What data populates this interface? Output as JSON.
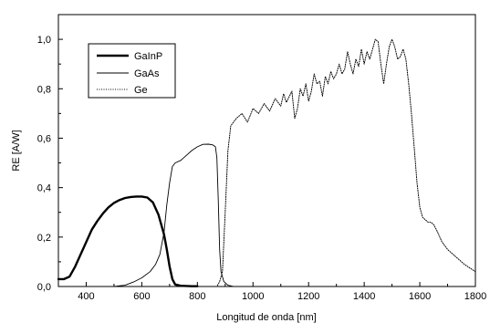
{
  "chart_data": {
    "type": "line",
    "title": "",
    "xlabel": "Longitud de onda [nm]",
    "ylabel": "RE [A/W]",
    "xlim": [
      300,
      1800
    ],
    "ylim": [
      0,
      1.1
    ],
    "x_ticks": [
      400,
      600,
      800,
      1000,
      1200,
      1400,
      1600,
      1800
    ],
    "y_ticks": [
      0.0,
      0.2,
      0.4,
      0.6,
      0.8,
      1.0
    ],
    "x_tick_labels": [
      "400",
      "600",
      "800",
      "1000",
      "1200",
      "1400",
      "1600",
      "1800"
    ],
    "y_tick_labels": [
      "0,0",
      "0,2",
      "0,4",
      "0,6",
      "0,8",
      "1,0"
    ],
    "grid": false,
    "legend_position": "top-left",
    "series": [
      {
        "name": "GaInP",
        "line_style": "solid-thick",
        "color": "#000000",
        "points": [
          [
            300,
            0.03
          ],
          [
            320,
            0.03
          ],
          [
            340,
            0.04
          ],
          [
            360,
            0.08
          ],
          [
            380,
            0.13
          ],
          [
            400,
            0.18
          ],
          [
            420,
            0.23
          ],
          [
            440,
            0.265
          ],
          [
            460,
            0.295
          ],
          [
            480,
            0.32
          ],
          [
            500,
            0.338
          ],
          [
            520,
            0.35
          ],
          [
            540,
            0.358
          ],
          [
            560,
            0.362
          ],
          [
            580,
            0.364
          ],
          [
            600,
            0.364
          ],
          [
            620,
            0.36
          ],
          [
            640,
            0.34
          ],
          [
            660,
            0.29
          ],
          [
            680,
            0.21
          ],
          [
            690,
            0.15
          ],
          [
            700,
            0.08
          ],
          [
            710,
            0.03
          ],
          [
            720,
            0.008
          ],
          [
            740,
            0.003
          ],
          [
            780,
            0.001
          ],
          [
            800,
            0.001
          ]
        ]
      },
      {
        "name": "GaAs",
        "line_style": "solid-thin",
        "color": "#000000",
        "points": [
          [
            500,
            0.0
          ],
          [
            540,
            0.005
          ],
          [
            570,
            0.018
          ],
          [
            600,
            0.035
          ],
          [
            630,
            0.06
          ],
          [
            650,
            0.09
          ],
          [
            665,
            0.13
          ],
          [
            680,
            0.22
          ],
          [
            690,
            0.33
          ],
          [
            700,
            0.42
          ],
          [
            710,
            0.485
          ],
          [
            720,
            0.5
          ],
          [
            740,
            0.51
          ],
          [
            760,
            0.53
          ],
          [
            780,
            0.55
          ],
          [
            800,
            0.565
          ],
          [
            820,
            0.575
          ],
          [
            840,
            0.576
          ],
          [
            855,
            0.573
          ],
          [
            865,
            0.565
          ],
          [
            870,
            0.52
          ],
          [
            875,
            0.35
          ],
          [
            880,
            0.15
          ],
          [
            885,
            0.06
          ],
          [
            895,
            0.02
          ],
          [
            910,
            0.005
          ],
          [
            930,
            0.0
          ]
        ]
      },
      {
        "name": "Ge",
        "line_style": "dotted",
        "color": "#000000",
        "points": [
          [
            850,
            0.0
          ],
          [
            870,
            0.0
          ],
          [
            880,
            0.02
          ],
          [
            890,
            0.06
          ],
          [
            900,
            0.3
          ],
          [
            910,
            0.55
          ],
          [
            920,
            0.65
          ],
          [
            940,
            0.68
          ],
          [
            960,
            0.7
          ],
          [
            980,
            0.665
          ],
          [
            1000,
            0.72
          ],
          [
            1020,
            0.7
          ],
          [
            1040,
            0.74
          ],
          [
            1060,
            0.71
          ],
          [
            1080,
            0.76
          ],
          [
            1100,
            0.73
          ],
          [
            1110,
            0.78
          ],
          [
            1120,
            0.745
          ],
          [
            1140,
            0.79
          ],
          [
            1150,
            0.68
          ],
          [
            1160,
            0.72
          ],
          [
            1170,
            0.8
          ],
          [
            1180,
            0.77
          ],
          [
            1190,
            0.82
          ],
          [
            1200,
            0.75
          ],
          [
            1210,
            0.79
          ],
          [
            1220,
            0.86
          ],
          [
            1230,
            0.82
          ],
          [
            1240,
            0.83
          ],
          [
            1250,
            0.77
          ],
          [
            1260,
            0.85
          ],
          [
            1270,
            0.82
          ],
          [
            1280,
            0.87
          ],
          [
            1290,
            0.84
          ],
          [
            1300,
            0.86
          ],
          [
            1310,
            0.9
          ],
          [
            1320,
            0.86
          ],
          [
            1330,
            0.88
          ],
          [
            1340,
            0.95
          ],
          [
            1350,
            0.9
          ],
          [
            1360,
            0.86
          ],
          [
            1370,
            0.92
          ],
          [
            1380,
            0.89
          ],
          [
            1390,
            0.96
          ],
          [
            1400,
            0.9
          ],
          [
            1410,
            0.95
          ],
          [
            1420,
            0.92
          ],
          [
            1430,
            0.96
          ],
          [
            1440,
            1.0
          ],
          [
            1450,
            0.99
          ],
          [
            1460,
            0.9
          ],
          [
            1470,
            0.82
          ],
          [
            1480,
            0.9
          ],
          [
            1490,
            0.97
          ],
          [
            1500,
            1.0
          ],
          [
            1510,
            0.97
          ],
          [
            1520,
            0.92
          ],
          [
            1530,
            0.93
          ],
          [
            1540,
            0.96
          ],
          [
            1550,
            0.92
          ],
          [
            1560,
            0.82
          ],
          [
            1570,
            0.7
          ],
          [
            1580,
            0.56
          ],
          [
            1590,
            0.42
          ],
          [
            1600,
            0.32
          ],
          [
            1610,
            0.28
          ],
          [
            1620,
            0.27
          ],
          [
            1630,
            0.26
          ],
          [
            1640,
            0.26
          ],
          [
            1650,
            0.25
          ],
          [
            1660,
            0.23
          ],
          [
            1680,
            0.18
          ],
          [
            1700,
            0.15
          ],
          [
            1720,
            0.13
          ],
          [
            1740,
            0.11
          ],
          [
            1760,
            0.09
          ],
          [
            1780,
            0.075
          ],
          [
            1800,
            0.06
          ]
        ]
      }
    ]
  }
}
